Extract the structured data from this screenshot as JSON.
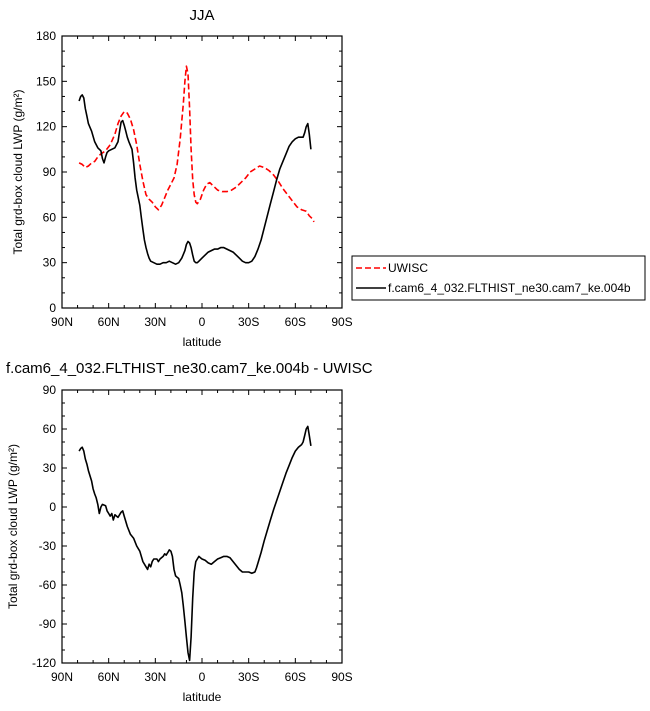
{
  "chart_data": [
    {
      "type": "line",
      "title": "JJA",
      "xlabel": "latitude",
      "ylabel": "Total grd-box cloud LWP (g/m²)",
      "xlim": [
        90,
        -90
      ],
      "ylim": [
        0,
        180
      ],
      "xticks": [
        90,
        60,
        30,
        0,
        -30,
        -60,
        -90
      ],
      "xtick_labels": [
        "90N",
        "60N",
        "30N",
        "0",
        "30S",
        "60S",
        "90S"
      ],
      "yticks": [
        0,
        30,
        60,
        90,
        120,
        150,
        180
      ],
      "ytick_labels": [
        "0",
        "30",
        "60",
        "90",
        "120",
        "150",
        "180"
      ],
      "grid": false,
      "legend_position": "right",
      "series": [
        {
          "name": "UWISC",
          "color": "#ff0000",
          "dash": true,
          "points": [
            [
              79,
              96
            ],
            [
              77,
              95
            ],
            [
              75,
              93
            ],
            [
              73,
              94
            ],
            [
              71,
              96
            ],
            [
              69,
              97
            ],
            [
              67,
              100
            ],
            [
              65,
              102
            ],
            [
              62,
              104
            ],
            [
              59,
              108
            ],
            [
              56,
              115
            ],
            [
              54,
              122
            ],
            [
              52,
              127
            ],
            [
              50,
              130
            ],
            [
              48,
              129
            ],
            [
              46,
              125
            ],
            [
              44,
              118
            ],
            [
              42,
              108
            ],
            [
              40,
              95
            ],
            [
              38,
              84
            ],
            [
              36,
              75
            ],
            [
              34,
              72
            ],
            [
              32,
              70
            ],
            [
              30,
              67
            ],
            [
              28,
              65
            ],
            [
              26,
              68
            ],
            [
              24,
              73
            ],
            [
              22,
              78
            ],
            [
              20,
              82
            ],
            [
              18,
              86
            ],
            [
              16,
              95
            ],
            [
              14,
              112
            ],
            [
              12,
              135
            ],
            [
              11,
              150
            ],
            [
              10,
              160
            ],
            [
              9,
              155
            ],
            [
              8,
              132
            ],
            [
              7,
              105
            ],
            [
              6,
              85
            ],
            [
              5,
              75
            ],
            [
              4,
              70
            ],
            [
              3,
              69
            ],
            [
              1,
              72
            ],
            [
              -1,
              78
            ],
            [
              -3,
              82
            ],
            [
              -5,
              83
            ],
            [
              -7,
              81
            ],
            [
              -10,
              78
            ],
            [
              -13,
              77
            ],
            [
              -16,
              77
            ],
            [
              -19,
              78
            ],
            [
              -22,
              80
            ],
            [
              -25,
              83
            ],
            [
              -28,
              86
            ],
            [
              -31,
              90
            ],
            [
              -34,
              92
            ],
            [
              -37,
              94
            ],
            [
              -40,
              93
            ],
            [
              -43,
              91
            ],
            [
              -46,
              88
            ],
            [
              -49,
              84
            ],
            [
              -52,
              79
            ],
            [
              -55,
              75
            ],
            [
              -58,
              71
            ],
            [
              -61,
              67
            ],
            [
              -64,
              65
            ],
            [
              -67,
              64
            ],
            [
              -69,
              61
            ],
            [
              -71,
              59
            ],
            [
              -72,
              57
            ]
          ]
        },
        {
          "name": "f.cam6_4_032.FLTHIST_ne30.cam7_ke.004b",
          "color": "#000000",
          "dash": false,
          "points": [
            [
              79,
              137
            ],
            [
              78,
              140
            ],
            [
              77,
              141
            ],
            [
              76,
              139
            ],
            [
              75,
              132
            ],
            [
              74,
              127
            ],
            [
              73,
              122
            ],
            [
              71,
              117
            ],
            [
              69,
              110
            ],
            [
              67,
              106
            ],
            [
              65,
              104
            ],
            [
              64,
              99
            ],
            [
              63,
              96
            ],
            [
              62,
              100
            ],
            [
              61,
              103
            ],
            [
              60,
              104
            ],
            [
              58,
              105
            ],
            [
              56,
              106
            ],
            [
              54,
              110
            ],
            [
              53,
              117
            ],
            [
              52,
              123
            ],
            [
              51,
              124
            ],
            [
              50,
              121
            ],
            [
              49,
              117
            ],
            [
              48,
              113
            ],
            [
              47,
              110
            ],
            [
              45,
              105
            ],
            [
              44,
              96
            ],
            [
              43,
              86
            ],
            [
              42,
              78
            ],
            [
              40,
              68
            ],
            [
              39,
              60
            ],
            [
              38,
              52
            ],
            [
              37,
              45
            ],
            [
              36,
              40
            ],
            [
              35,
              36
            ],
            [
              34,
              33
            ],
            [
              33,
              31
            ],
            [
              31,
              30
            ],
            [
              29,
              29
            ],
            [
              27,
              29
            ],
            [
              25,
              30
            ],
            [
              23,
              30
            ],
            [
              21,
              31
            ],
            [
              19,
              30
            ],
            [
              17,
              29
            ],
            [
              15,
              30
            ],
            [
              13,
              33
            ],
            [
              11,
              38
            ],
            [
              10,
              42
            ],
            [
              9,
              44
            ],
            [
              8,
              43
            ],
            [
              7,
              40
            ],
            [
              6,
              35
            ],
            [
              5,
              31
            ],
            [
              4,
              30
            ],
            [
              3,
              30
            ],
            [
              2,
              31
            ],
            [
              0,
              33
            ],
            [
              -2,
              35
            ],
            [
              -4,
              37
            ],
            [
              -6,
              38
            ],
            [
              -8,
              39
            ],
            [
              -10,
              39
            ],
            [
              -12,
              40
            ],
            [
              -14,
              40
            ],
            [
              -16,
              39
            ],
            [
              -18,
              38
            ],
            [
              -20,
              37
            ],
            [
              -22,
              35
            ],
            [
              -24,
              33
            ],
            [
              -26,
              31
            ],
            [
              -28,
              30
            ],
            [
              -30,
              30
            ],
            [
              -32,
              31
            ],
            [
              -34,
              34
            ],
            [
              -36,
              39
            ],
            [
              -38,
              45
            ],
            [
              -40,
              53
            ],
            [
              -42,
              61
            ],
            [
              -44,
              69
            ],
            [
              -46,
              77
            ],
            [
              -48,
              85
            ],
            [
              -50,
              92
            ],
            [
              -52,
              97
            ],
            [
              -54,
              102
            ],
            [
              -56,
              107
            ],
            [
              -58,
              110
            ],
            [
              -60,
              112
            ],
            [
              -62,
              113
            ],
            [
              -64,
              113
            ],
            [
              -65,
              113
            ],
            [
              -66,
              116
            ],
            [
              -67,
              120
            ],
            [
              -68,
              122
            ],
            [
              -69,
              115
            ],
            [
              -70,
              105
            ]
          ]
        }
      ]
    },
    {
      "type": "line",
      "title": "f.cam6_4_032.FLTHIST_ne30.cam7_ke.004b - UWISC",
      "xlabel": "latitude",
      "ylabel": "Total grd-box cloud LWP (g/m²)",
      "xlim": [
        90,
        -90
      ],
      "ylim": [
        -120,
        90
      ],
      "xticks": [
        90,
        60,
        30,
        0,
        -30,
        -60,
        -90
      ],
      "xtick_labels": [
        "90N",
        "60N",
        "30N",
        "0",
        "30S",
        "60S",
        "90S"
      ],
      "yticks": [
        -120,
        -90,
        -60,
        -30,
        0,
        30,
        60,
        90
      ],
      "ytick_labels": [
        "-120",
        "-90",
        "-60",
        "-30",
        "0",
        "30",
        "60",
        "90"
      ],
      "grid": false,
      "series": [
        {
          "color": "#000000",
          "dash": false,
          "points": [
            [
              79,
              43
            ],
            [
              78,
              45
            ],
            [
              77,
              46
            ],
            [
              76,
              43
            ],
            [
              75,
              37
            ],
            [
              74,
              33
            ],
            [
              73,
              28
            ],
            [
              71,
              20
            ],
            [
              70,
              14
            ],
            [
              69,
              10
            ],
            [
              68,
              7
            ],
            [
              67,
              2
            ],
            [
              66,
              -5
            ],
            [
              65,
              0
            ],
            [
              64,
              2
            ],
            [
              62,
              1
            ],
            [
              61,
              -3
            ],
            [
              60,
              -5
            ],
            [
              59,
              -7
            ],
            [
              58,
              -5
            ],
            [
              57,
              -10
            ],
            [
              56,
              -6
            ],
            [
              54,
              -8
            ],
            [
              52,
              -4
            ],
            [
              51,
              -3
            ],
            [
              50,
              -7
            ],
            [
              48,
              -15
            ],
            [
              46,
              -21
            ],
            [
              44,
              -24
            ],
            [
              42,
              -30
            ],
            [
              40,
              -34
            ],
            [
              38,
              -42
            ],
            [
              36,
              -46
            ],
            [
              35,
              -48
            ],
            [
              34,
              -44
            ],
            [
              33,
              -46
            ],
            [
              32,
              -42
            ],
            [
              31,
              -40
            ],
            [
              29,
              -40
            ],
            [
              28,
              -42
            ],
            [
              27,
              -40
            ],
            [
              25,
              -38
            ],
            [
              24,
              -36
            ],
            [
              23,
              -37
            ],
            [
              22,
              -35
            ],
            [
              21,
              -33
            ],
            [
              20,
              -34
            ],
            [
              19,
              -38
            ],
            [
              18,
              -48
            ],
            [
              17,
              -53
            ],
            [
              16,
              -54
            ],
            [
              15,
              -55
            ],
            [
              14,
              -60
            ],
            [
              13,
              -66
            ],
            [
              12,
              -76
            ],
            [
              11,
              -88
            ],
            [
              10,
              -100
            ],
            [
              9,
              -112
            ],
            [
              8,
              -118
            ],
            [
              7,
              -100
            ],
            [
              6,
              -70
            ],
            [
              5,
              -50
            ],
            [
              4,
              -42
            ],
            [
              3,
              -40
            ],
            [
              2,
              -38
            ],
            [
              1,
              -39
            ],
            [
              0,
              -40
            ],
            [
              -2,
              -41
            ],
            [
              -4,
              -43
            ],
            [
              -6,
              -44
            ],
            [
              -8,
              -42
            ],
            [
              -10,
              -40
            ],
            [
              -12,
              -39
            ],
            [
              -14,
              -38
            ],
            [
              -16,
              -38
            ],
            [
              -18,
              -39
            ],
            [
              -20,
              -42
            ],
            [
              -22,
              -45
            ],
            [
              -24,
              -48
            ],
            [
              -26,
              -50
            ],
            [
              -28,
              -50
            ],
            [
              -30,
              -50
            ],
            [
              -32,
              -51
            ],
            [
              -34,
              -50
            ],
            [
              -35,
              -47
            ],
            [
              -36,
              -43
            ],
            [
              -38,
              -35
            ],
            [
              -40,
              -26
            ],
            [
              -42,
              -18
            ],
            [
              -44,
              -10
            ],
            [
              -46,
              -2
            ],
            [
              -48,
              5
            ],
            [
              -50,
              12
            ],
            [
              -52,
              19
            ],
            [
              -54,
              26
            ],
            [
              -56,
              32
            ],
            [
              -58,
              38
            ],
            [
              -60,
              43
            ],
            [
              -62,
              46
            ],
            [
              -64,
              48
            ],
            [
              -65,
              50
            ],
            [
              -66,
              55
            ],
            [
              -67,
              60
            ],
            [
              -68,
              62
            ],
            [
              -69,
              55
            ],
            [
              -70,
              47
            ]
          ]
        }
      ]
    }
  ]
}
